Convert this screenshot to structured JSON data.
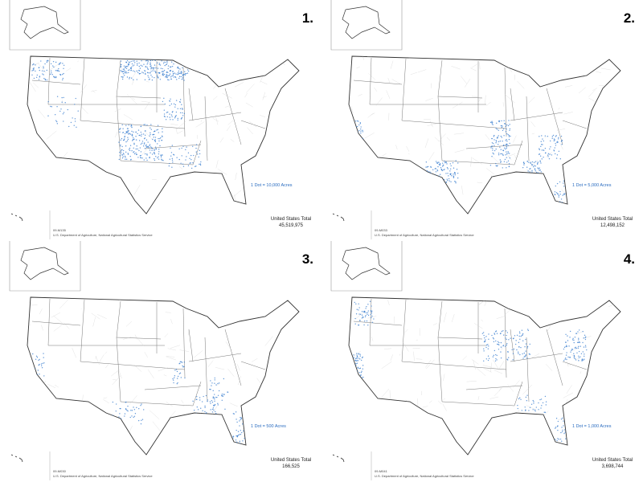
{
  "panels": [
    {
      "number": "1.",
      "legend": "1 Dot = 10,000 Acres",
      "total_label": "United States Total",
      "total": "45,519,975",
      "code": "09-M135",
      "source": "U.S. Department of Agriculture, National Agricultural Statistics Service"
    },
    {
      "number": "2.",
      "legend": "1 Dot = 5,000 Acres",
      "total_label": "United States Total",
      "total": "12,498,152",
      "code": "09-M033",
      "source": "U.S. Department of Agriculture, National Agricultural Statistics Service"
    },
    {
      "number": "3.",
      "legend": "1 Dot = 500 Acres",
      "total_label": "United States Total",
      "total": "166,525",
      "code": "09-M030",
      "source": "U.S. Department of Agriculture, National Agricultural Statistics Service"
    },
    {
      "number": "4.",
      "legend": "1 Dot = 1,000 Acres",
      "total_label": "United States Total",
      "total": "3,698,744",
      "code": "09-M041",
      "source": "U.S. Department of Agriculture, National Agricultural Statistics Service"
    }
  ]
}
